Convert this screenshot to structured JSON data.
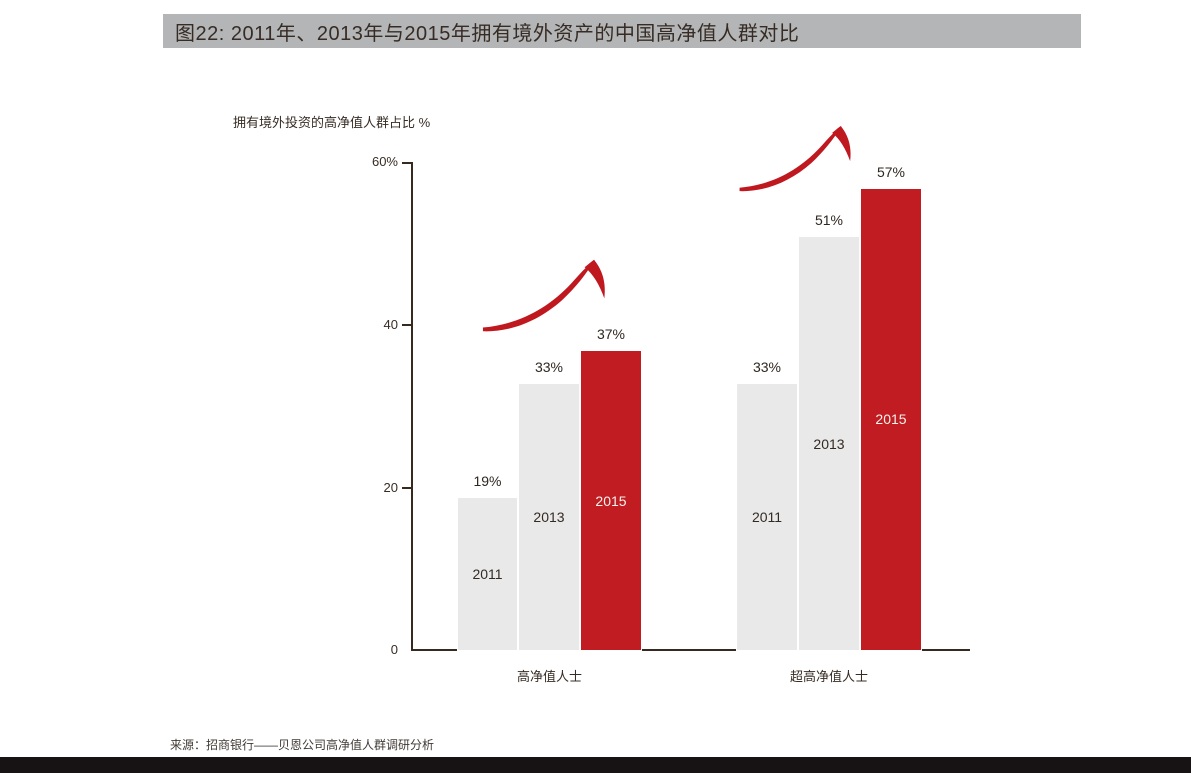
{
  "header": {
    "title": "图22: 2011年、2013年与2015年拥有境外资产的中国高净值人群对比"
  },
  "footer": {
    "source": "来源：招商银行——贝恩公司高净值人群调研分析"
  },
  "colors": {
    "accent_red": "#c01c22",
    "bar_gray": "#e9e9e9",
    "title_banner_bg": "#b3b5b6",
    "text_dark": "#342a24",
    "bottom_bar": "#171314"
  },
  "chart_data": {
    "type": "bar",
    "title": "图22: 2011年、2013年与2015年拥有境外资产的中国高净值人群对比",
    "ylabel": "拥有境外投资的高净值人群占比 %",
    "xlabel": "",
    "ylim": [
      0,
      60
    ],
    "yticks": [
      "60%",
      "40",
      "20",
      "0"
    ],
    "grid": false,
    "legend_position": "none",
    "categories": [
      "高净值人士",
      "超高净值人士"
    ],
    "series": [
      {
        "name": "2011",
        "values": [
          19,
          33
        ],
        "labels": [
          "19%",
          "33%"
        ],
        "color": "#e9e9e9"
      },
      {
        "name": "2013",
        "values": [
          33,
          51
        ],
        "labels": [
          "33%",
          "51%"
        ],
        "color": "#e9e9e9"
      },
      {
        "name": "2015",
        "values": [
          37,
          57
        ],
        "labels": [
          "37%",
          "57%"
        ],
        "color": "#c01c22"
      }
    ],
    "annotations": [
      "hand-drawn red growth arrow above each category group"
    ]
  }
}
